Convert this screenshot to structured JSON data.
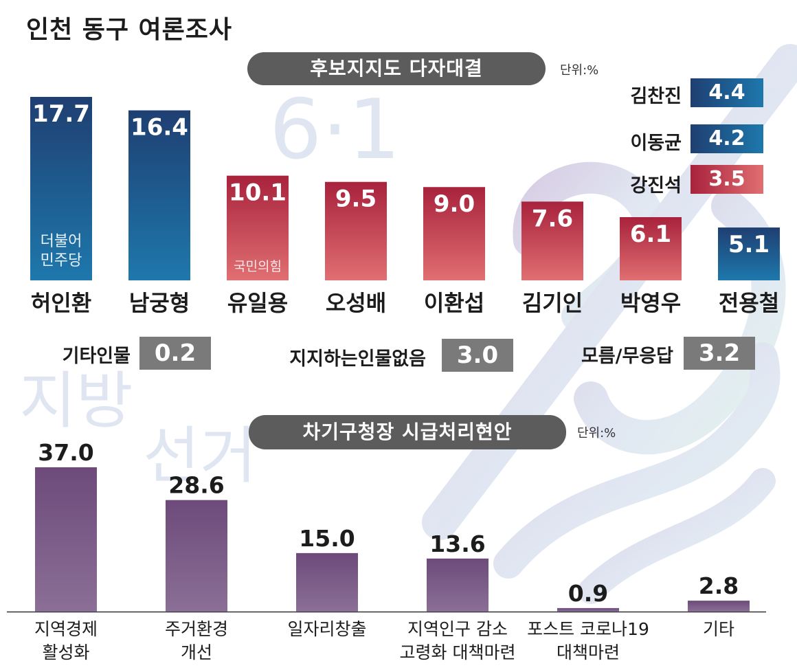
{
  "title": "인천 동구 여론조사",
  "section1": {
    "heading": "후보지지도 다자대결",
    "unit": "단위:%",
    "party_labels": {
      "democratic": "더불어\n민주당",
      "ppp": "국민의힘"
    },
    "colors": {
      "democratic": "#1a4d7e",
      "ppp": "#b82f44"
    }
  },
  "side_candidates": [
    {
      "name": "김찬진",
      "value": "4.4",
      "party": "democratic"
    },
    {
      "name": "이동균",
      "value": "4.2",
      "party": "democratic"
    },
    {
      "name": "강진석",
      "value": "3.5",
      "party": "ppp"
    }
  ],
  "others": [
    {
      "label": "기타인물",
      "value": "0.2"
    },
    {
      "label": "지지하는인물없음",
      "value": "3.0"
    },
    {
      "label": "모름/무응답",
      "value": "3.2"
    }
  ],
  "section2": {
    "heading": "차기구청장 시급처리현안",
    "unit": "단위:%",
    "color": "#7a5a86"
  },
  "chart_data": [
    {
      "type": "bar",
      "title": "후보지지도 다자대결",
      "unit": "%",
      "categories": [
        "허인환",
        "남궁형",
        "유일용",
        "오성배",
        "이환섭",
        "김기인",
        "박영우",
        "전용철"
      ],
      "values": [
        17.7,
        16.4,
        10.1,
        9.5,
        9.0,
        7.6,
        6.1,
        5.1
      ],
      "labels": [
        "17.7",
        "16.4",
        "10.1",
        "9.5",
        "9.0",
        "7.6",
        "6.1",
        "5.1"
      ],
      "party": [
        "democratic",
        "democratic",
        "ppp",
        "ppp",
        "ppp",
        "ppp",
        "ppp",
        "democratic"
      ],
      "ylim": [
        0,
        17.7
      ],
      "grid": false
    },
    {
      "type": "bar",
      "title": "차기구청장 시급처리현안",
      "unit": "%",
      "categories": [
        "지역경제\n활성화",
        "주거환경\n개선",
        "일자리창출",
        "지역인구 감소\n고령화 대책마련",
        "포스트 코로나19\n대책마련",
        "기타"
      ],
      "values": [
        37.0,
        28.6,
        15.0,
        13.6,
        0.9,
        2.8
      ],
      "labels": [
        "37.0",
        "28.6",
        "15.0",
        "13.6",
        "0.9",
        "2.8"
      ],
      "ylim": [
        0,
        37.0
      ],
      "grid": false
    }
  ]
}
